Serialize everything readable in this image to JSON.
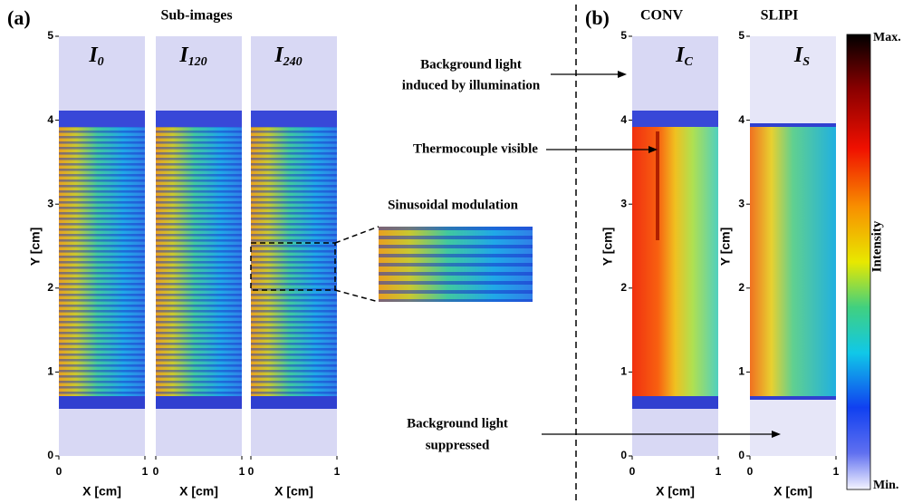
{
  "panel_a": {
    "label": "(a)",
    "title": "Sub-images",
    "images": [
      {
        "symbol": "I",
        "subscript": "0"
      },
      {
        "symbol": "I",
        "subscript": "120"
      },
      {
        "symbol": "I",
        "subscript": "240"
      }
    ]
  },
  "panel_b": {
    "label": "(b)",
    "images": [
      {
        "title": "CONV",
        "symbol": "I",
        "subscript": "C"
      },
      {
        "title": "SLIPI",
        "symbol": "I",
        "subscript": "S"
      }
    ]
  },
  "axes": {
    "ylabel": "Y [cm]",
    "xlabel": "X [cm]",
    "yticks": [
      0,
      1,
      2,
      3,
      4,
      5
    ],
    "xticks": [
      0,
      1
    ]
  },
  "annotations": {
    "background_illumination": [
      "Background light",
      "induced by illumination"
    ],
    "thermocouple": "Thermocouple visible",
    "modulation": "Sinusoidal modulation",
    "background_suppressed": [
      "Background light",
      "suppressed"
    ]
  },
  "colorbar": {
    "max": "Max.",
    "min": "Min.",
    "label": "Intensity"
  }
}
